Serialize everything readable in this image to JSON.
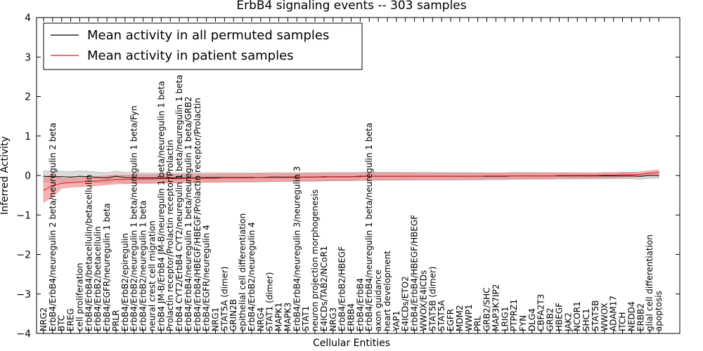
{
  "chart_data": {
    "type": "line",
    "title": "ErbB4 signaling events -- 303 samples",
    "xlabel": "Cellular Entities",
    "ylabel": "Inferred Activity",
    "ylim": [
      -4,
      4
    ],
    "yticks": [
      -4,
      -3,
      -2,
      -1,
      0,
      1,
      2,
      3,
      4
    ],
    "grid": false,
    "legend_position": "top-left",
    "colors": {
      "permuted": "#000000",
      "patient": "#e31a1c",
      "patient_band": "#f08080",
      "permuted_band": "#bdbdbd"
    },
    "categories": [
      "NRG2",
      "ErbB4/ErbB4/neuregulin 2 beta/neuregulin 2 beta",
      "BTC",
      "EREG",
      "cell proliferation",
      "ErbB4/ErbB4/betacellulin/betacellulin",
      "ErbB4/ErbB2/betacellulin",
      "ErbB4/EGFR/neuregulin 1 beta",
      "PRLR",
      "ErbB4/ErbB2/epiregulin",
      "ErbB4/ErbB2/neuregulin 1 beta/neuregulin 1 beta/Fyn",
      "ErbB4/ErbB2/neuregulin 1 beta",
      "neural crest cell migration",
      "ErbB4 JM-B/ErbB4 JM-B/neuregulin 1 beta/neuregulin 1 beta",
      "Prolactin receptor/Prolactin receptor/Prolactin",
      "ErbB4 CYT2/ErbB4 CYT2/neuregulin 1 beta/neuregulin 1 beta",
      "ErbB4/ErbB4/neuregulin 1 beta/neuregulin 1 beta/GRB2",
      "ErbB4/ErbB4/HBEGF/HBEGF/Prolactin receptor/Prolactin",
      "ErbB4/EGFR/neuregulin 4",
      "NRG1",
      "STAT5A (dimer)",
      "GRIN2B",
      "epithelial cell differentiation",
      "ErbB4/ErbB2/neuregulin 4",
      "NRG4",
      "STAT1 (dimer)",
      "MAPK1",
      "MAPK3",
      "ErbB4/ErbB4/neuregulin 3/neuregulin 3",
      "STAT1",
      "neuron projection morphogenesis",
      "E4ICDs/TAB2/NCoR1",
      "NRG3",
      "ErbB4/ErbB2/HBEGF",
      "ERBB4",
      "ErbB4/ErbB4",
      "ErbB4/ErbB4/neuregulin 1 beta/neuregulin 1 beta",
      "axon guidance",
      "heart development",
      "YAP1",
      "E4ICDs/ETO2",
      "ErbB4/ErbB4/HBEGF/HBEGF",
      "WWOX/E4ICDs",
      "STAT5B (dimer)",
      "STAT5A",
      "EGFR",
      "MDM2",
      "WWP1",
      "PRL",
      "GRB2/SHC",
      "MAP3K7IP2",
      "LRIG1",
      "PTPRZ1",
      "FYN",
      "DLG4",
      "CBFA2T3",
      "GRB2",
      "HBEGF",
      "JAK2",
      "NCOR1",
      "SHC1",
      "STAT5B",
      "WWOX",
      "ADAM17",
      "ITCH",
      "NEDD4",
      "ERBB2",
      "glial cell differentiation",
      "apoptosis"
    ],
    "series": [
      {
        "name": "Mean activity in all permuted samples",
        "values": [
          -0.02,
          -0.03,
          -0.03,
          -0.04,
          -0.02,
          -0.03,
          -0.05,
          -0.06,
          -0.02,
          -0.05,
          -0.06,
          -0.06,
          -0.06,
          -0.06,
          -0.06,
          -0.06,
          -0.06,
          -0.06,
          -0.05,
          -0.05,
          -0.05,
          -0.05,
          -0.05,
          -0.05,
          -0.05,
          -0.04,
          -0.04,
          -0.04,
          -0.04,
          -0.04,
          -0.04,
          -0.03,
          -0.03,
          -0.03,
          -0.03,
          -0.02,
          -0.02,
          -0.02,
          -0.02,
          -0.02,
          -0.02,
          -0.02,
          -0.02,
          -0.02,
          -0.02,
          -0.02,
          -0.02,
          -0.02,
          -0.02,
          -0.02,
          -0.02,
          -0.02,
          -0.01,
          -0.01,
          -0.01,
          -0.01,
          -0.01,
          -0.01,
          -0.01,
          -0.01,
          -0.01,
          -0.01,
          -0.01,
          -0.01,
          -0.01,
          -0.01,
          -0.02,
          0.0,
          0.0
        ]
      },
      {
        "name": "Mean activity in patient samples",
        "values": [
          -0.38,
          -0.25,
          -0.2,
          -0.18,
          -0.17,
          -0.15,
          -0.14,
          -0.12,
          -0.1,
          -0.1,
          -0.09,
          -0.09,
          -0.09,
          -0.08,
          -0.08,
          -0.08,
          -0.07,
          -0.07,
          -0.07,
          -0.07,
          -0.06,
          -0.06,
          -0.06,
          -0.06,
          -0.05,
          -0.05,
          -0.05,
          -0.05,
          -0.05,
          -0.04,
          -0.04,
          -0.04,
          -0.03,
          -0.03,
          -0.03,
          -0.03,
          -0.02,
          -0.02,
          -0.02,
          -0.02,
          -0.02,
          -0.02,
          -0.02,
          -0.02,
          -0.02,
          -0.02,
          -0.02,
          -0.02,
          -0.02,
          -0.01,
          -0.01,
          -0.01,
          -0.01,
          -0.01,
          -0.01,
          -0.01,
          -0.01,
          0.0,
          0.0,
          0.0,
          0.0,
          0.0,
          0.01,
          0.01,
          0.02,
          0.02,
          0.03,
          0.06,
          0.08
        ]
      }
    ],
    "legend": [
      "Mean activity in all permuted samples",
      "Mean activity in patient samples"
    ]
  }
}
